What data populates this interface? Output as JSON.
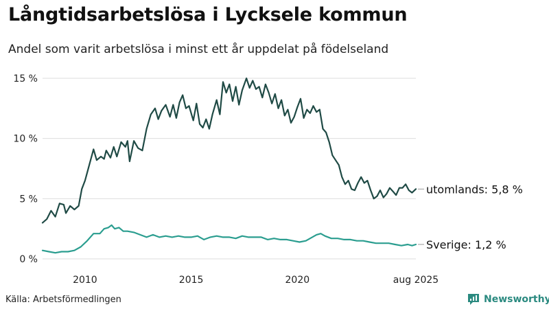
{
  "header": {
    "title": "Långtidsarbetslösa i Lycksele kommun",
    "subtitle": "Andel som varit arbetslösa i minst ett år uppdelat på födelseland"
  },
  "footer": {
    "source": "Källa: Arbetsförmedlingen",
    "brand": "Newsworthy"
  },
  "colors": {
    "utomlands": "#1f4a45",
    "sverige": "#2a9d8f",
    "grid": "#dddddd",
    "connector": "#999999"
  },
  "icons": {
    "brand": "newsworthy-logo-icon"
  },
  "chart_data": {
    "type": "line",
    "title": "Långtidsarbetslösa i Lycksele kommun",
    "subtitle": "Andel som varit arbetslösa i minst ett år uppdelat på födelseland",
    "xlabel": "",
    "ylabel": "",
    "ylim": [
      0,
      15
    ],
    "xlim": [
      2008.0,
      2025.58
    ],
    "grid": true,
    "legend": "end-labels",
    "y_ticks": [
      {
        "value": 0,
        "label": "0 %"
      },
      {
        "value": 5,
        "label": "5 %"
      },
      {
        "value": 10,
        "label": "10 %"
      },
      {
        "value": 15,
        "label": "15 %"
      }
    ],
    "x_ticks": [
      {
        "value": 2010,
        "label": "2010"
      },
      {
        "value": 2015,
        "label": "2015"
      },
      {
        "value": 2020,
        "label": "2020"
      },
      {
        "value": 2025.58,
        "label": "aug 2025"
      }
    ],
    "series": [
      {
        "name": "utomlands",
        "end_label": "utomlands: 5,8 %",
        "color": "#1f4a45",
        "points": [
          [
            2008.0,
            3.0
          ],
          [
            2008.2,
            3.3
          ],
          [
            2008.4,
            4.0
          ],
          [
            2008.6,
            3.5
          ],
          [
            2008.8,
            4.6
          ],
          [
            2009.0,
            4.5
          ],
          [
            2009.1,
            3.8
          ],
          [
            2009.3,
            4.4
          ],
          [
            2009.5,
            4.1
          ],
          [
            2009.7,
            4.4
          ],
          [
            2009.85,
            5.8
          ],
          [
            2010.0,
            6.5
          ],
          [
            2010.2,
            7.8
          ],
          [
            2010.4,
            9.1
          ],
          [
            2010.55,
            8.2
          ],
          [
            2010.75,
            8.5
          ],
          [
            2010.9,
            8.3
          ],
          [
            2011.0,
            9.0
          ],
          [
            2011.2,
            8.4
          ],
          [
            2011.35,
            9.3
          ],
          [
            2011.5,
            8.5
          ],
          [
            2011.7,
            9.7
          ],
          [
            2011.9,
            9.3
          ],
          [
            2012.0,
            9.8
          ],
          [
            2012.1,
            8.1
          ],
          [
            2012.3,
            9.8
          ],
          [
            2012.5,
            9.2
          ],
          [
            2012.7,
            9.0
          ],
          [
            2012.9,
            10.8
          ],
          [
            2013.1,
            12.0
          ],
          [
            2013.3,
            12.5
          ],
          [
            2013.45,
            11.6
          ],
          [
            2013.6,
            12.3
          ],
          [
            2013.8,
            12.8
          ],
          [
            2014.0,
            11.8
          ],
          [
            2014.15,
            12.8
          ],
          [
            2014.3,
            11.7
          ],
          [
            2014.45,
            13.0
          ],
          [
            2014.6,
            13.6
          ],
          [
            2014.75,
            12.5
          ],
          [
            2014.9,
            12.7
          ],
          [
            2015.1,
            11.5
          ],
          [
            2015.25,
            12.9
          ],
          [
            2015.4,
            11.2
          ],
          [
            2015.55,
            10.9
          ],
          [
            2015.7,
            11.6
          ],
          [
            2015.85,
            10.8
          ],
          [
            2016.0,
            12.0
          ],
          [
            2016.2,
            13.2
          ],
          [
            2016.35,
            12.0
          ],
          [
            2016.5,
            14.7
          ],
          [
            2016.65,
            13.8
          ],
          [
            2016.8,
            14.5
          ],
          [
            2016.95,
            13.1
          ],
          [
            2017.1,
            14.3
          ],
          [
            2017.25,
            12.8
          ],
          [
            2017.4,
            14.0
          ],
          [
            2017.6,
            15.0
          ],
          [
            2017.75,
            14.2
          ],
          [
            2017.9,
            14.8
          ],
          [
            2018.05,
            14.1
          ],
          [
            2018.2,
            14.3
          ],
          [
            2018.35,
            13.4
          ],
          [
            2018.5,
            14.5
          ],
          [
            2018.65,
            13.8
          ],
          [
            2018.8,
            12.9
          ],
          [
            2018.95,
            13.7
          ],
          [
            2019.1,
            12.5
          ],
          [
            2019.25,
            13.2
          ],
          [
            2019.4,
            11.9
          ],
          [
            2019.55,
            12.4
          ],
          [
            2019.7,
            11.3
          ],
          [
            2019.85,
            11.8
          ],
          [
            2020.0,
            12.6
          ],
          [
            2020.15,
            13.3
          ],
          [
            2020.3,
            11.7
          ],
          [
            2020.45,
            12.4
          ],
          [
            2020.6,
            12.1
          ],
          [
            2020.75,
            12.7
          ],
          [
            2020.9,
            12.2
          ],
          [
            2021.05,
            12.4
          ],
          [
            2021.2,
            10.8
          ],
          [
            2021.35,
            10.5
          ],
          [
            2021.5,
            9.7
          ],
          [
            2021.65,
            8.6
          ],
          [
            2021.8,
            8.2
          ],
          [
            2021.95,
            7.8
          ],
          [
            2022.1,
            6.8
          ],
          [
            2022.25,
            6.2
          ],
          [
            2022.4,
            6.5
          ],
          [
            2022.55,
            5.8
          ],
          [
            2022.7,
            5.7
          ],
          [
            2022.85,
            6.3
          ],
          [
            2023.0,
            6.8
          ],
          [
            2023.15,
            6.3
          ],
          [
            2023.3,
            6.5
          ],
          [
            2023.45,
            5.7
          ],
          [
            2023.6,
            5.0
          ],
          [
            2023.75,
            5.2
          ],
          [
            2023.9,
            5.7
          ],
          [
            2024.05,
            5.1
          ],
          [
            2024.2,
            5.4
          ],
          [
            2024.35,
            5.9
          ],
          [
            2024.5,
            5.6
          ],
          [
            2024.65,
            5.3
          ],
          [
            2024.8,
            5.9
          ],
          [
            2024.95,
            5.9
          ],
          [
            2025.1,
            6.2
          ],
          [
            2025.25,
            5.7
          ],
          [
            2025.4,
            5.5
          ],
          [
            2025.58,
            5.8
          ]
        ]
      },
      {
        "name": "Sverige",
        "end_label": "Sverige: 1,2 %",
        "color": "#2a9d8f",
        "points": [
          [
            2008.0,
            0.7
          ],
          [
            2008.3,
            0.6
          ],
          [
            2008.6,
            0.5
          ],
          [
            2008.9,
            0.6
          ],
          [
            2009.2,
            0.6
          ],
          [
            2009.5,
            0.7
          ],
          [
            2009.8,
            1.0
          ],
          [
            2010.1,
            1.5
          ],
          [
            2010.4,
            2.1
          ],
          [
            2010.7,
            2.1
          ],
          [
            2010.9,
            2.5
          ],
          [
            2011.1,
            2.6
          ],
          [
            2011.25,
            2.8
          ],
          [
            2011.4,
            2.5
          ],
          [
            2011.6,
            2.6
          ],
          [
            2011.8,
            2.3
          ],
          [
            2012.0,
            2.3
          ],
          [
            2012.3,
            2.2
          ],
          [
            2012.6,
            2.0
          ],
          [
            2012.9,
            1.8
          ],
          [
            2013.2,
            2.0
          ],
          [
            2013.5,
            1.8
          ],
          [
            2013.8,
            1.9
          ],
          [
            2014.1,
            1.8
          ],
          [
            2014.4,
            1.9
          ],
          [
            2014.7,
            1.8
          ],
          [
            2015.0,
            1.8
          ],
          [
            2015.3,
            1.9
          ],
          [
            2015.6,
            1.6
          ],
          [
            2015.9,
            1.8
          ],
          [
            2016.2,
            1.9
          ],
          [
            2016.5,
            1.8
          ],
          [
            2016.8,
            1.8
          ],
          [
            2017.1,
            1.7
          ],
          [
            2017.4,
            1.9
          ],
          [
            2017.7,
            1.8
          ],
          [
            2018.0,
            1.8
          ],
          [
            2018.3,
            1.8
          ],
          [
            2018.6,
            1.6
          ],
          [
            2018.9,
            1.7
          ],
          [
            2019.2,
            1.6
          ],
          [
            2019.5,
            1.6
          ],
          [
            2019.8,
            1.5
          ],
          [
            2020.1,
            1.4
          ],
          [
            2020.4,
            1.5
          ],
          [
            2020.7,
            1.8
          ],
          [
            2020.9,
            2.0
          ],
          [
            2021.1,
            2.1
          ],
          [
            2021.3,
            1.9
          ],
          [
            2021.6,
            1.7
          ],
          [
            2021.9,
            1.7
          ],
          [
            2022.2,
            1.6
          ],
          [
            2022.5,
            1.6
          ],
          [
            2022.8,
            1.5
          ],
          [
            2023.1,
            1.5
          ],
          [
            2023.4,
            1.4
          ],
          [
            2023.7,
            1.3
          ],
          [
            2024.0,
            1.3
          ],
          [
            2024.3,
            1.3
          ],
          [
            2024.6,
            1.2
          ],
          [
            2024.9,
            1.1
          ],
          [
            2025.2,
            1.2
          ],
          [
            2025.4,
            1.1
          ],
          [
            2025.58,
            1.2
          ]
        ]
      }
    ]
  }
}
